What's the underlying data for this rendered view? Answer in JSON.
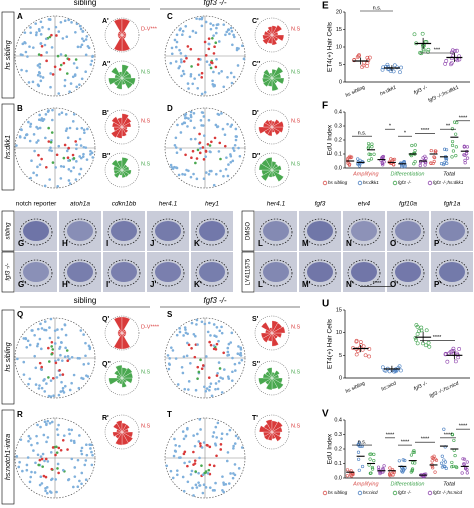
{
  "panels_top": {
    "column_headers": [
      "sibling",
      "fgf3 -/-"
    ],
    "row_labels": [
      "hs sibling",
      "hs:dkk1"
    ],
    "scatter_letters": [
      "A",
      "B",
      "C",
      "D"
    ],
    "rose_letters": [
      "A'",
      "A''",
      "B'",
      "B''",
      "C'",
      "C''",
      "D'",
      "D''"
    ],
    "rose_labels": [
      "D-V***",
      "N.S",
      "N.S",
      "N.S",
      "N.S",
      "N.S",
      "N.S",
      "N.S"
    ]
  },
  "in_situ": [
    {
      "headers": [
        "notch reporter",
        "atoh1a",
        "cdkn1bb",
        "her4.1",
        "hey1"
      ],
      "row_labels": [
        "sibling",
        "fgf3 -/-"
      ],
      "letters_top": [
        "G",
        "H",
        "I",
        "J",
        "K"
      ],
      "letters_bottom": [
        "G'",
        "H'",
        "I'",
        "J'",
        "K'"
      ]
    },
    {
      "headers": [
        "her4.1",
        "fgf3",
        "etv4",
        "fgf10a",
        "fgfr1a"
      ],
      "row_labels": [
        "DMSO",
        "LY411575"
      ],
      "letters_top": [
        "L",
        "M",
        "N",
        "O",
        "P"
      ],
      "letters_bottom": [
        "L'",
        "M'",
        "N'",
        "O'",
        "P'"
      ]
    }
  ],
  "panels_bottom": {
    "column_headers": [
      "sibling",
      "fgf3 -/-"
    ],
    "row_labels": [
      "hs sibling",
      "hs:notch1-intra"
    ],
    "scatter_letters": [
      "Q",
      "R",
      "S",
      "T"
    ],
    "rose_letters": [
      "Q'",
      "Q''",
      "R'",
      "S'",
      "S''",
      "T'"
    ],
    "rose_labels": [
      "D-V****",
      "N.S",
      "N.S",
      "N.S",
      "N.S",
      "N.S"
    ]
  },
  "charts": [
    {
      "letter": "E",
      "type": "dot",
      "ylabel": "ET4(+) Hair Cells",
      "categories": [
        "hs sibling",
        "hs:dkk1",
        "fgf3 -/-",
        "fgf3 -/-;hs:dkk1"
      ],
      "colors": [
        "#d9534f",
        "#4a7fc1",
        "#3fa34d",
        "#8e44ad"
      ],
      "values": [
        6,
        4,
        11,
        7
      ],
      "errors": [
        1,
        0.8,
        1.6,
        1.3
      ],
      "ylim": [
        0,
        20
      ],
      "yticks": [
        0,
        5,
        10,
        15,
        20
      ],
      "annotations": [
        "n.s.",
        "***"
      ]
    },
    {
      "letter": "F",
      "type": "grouped-dot",
      "ylabel": "EdU Index",
      "groups": [
        "Amplifying",
        "Differentiation",
        "Total"
      ],
      "group_colors": [
        "#d9534f",
        "#3fa34d",
        "#000000"
      ],
      "series": [
        {
          "name": "hs sibling",
          "color": "#d9534f",
          "values": [
            0.05,
            0.04,
            0.1
          ]
        },
        {
          "name": "hs:dkk1",
          "color": "#4a7fc1",
          "values": [
            0.04,
            0.03,
            0.08
          ]
        },
        {
          "name": "fgf3 -/-",
          "color": "#3fa34d",
          "values": [
            0.13,
            0.1,
            0.22
          ]
        },
        {
          "name": "fgf3 -/-;hs:dkk1",
          "color": "#8e44ad",
          "values": [
            0.06,
            0.05,
            0.12
          ]
        }
      ],
      "ylim": [
        0,
        0.4
      ],
      "yticks": [
        {
          "value": 0,
          "label": "0.0"
        },
        {
          "value": 0.1,
          "label": "0.1"
        },
        {
          "value": 0.2,
          "label": "0.2"
        },
        {
          "value": 0.3,
          "label": "0.3"
        },
        {
          "value": 0.4,
          "label": "0.4"
        }
      ],
      "annotations": [
        "n.s.",
        "*",
        "*",
        "****",
        "**",
        "****"
      ]
    },
    {
      "letter": "U",
      "type": "dot",
      "ylabel": "ET4(+) Hair Cells",
      "categories": [
        "hs sibling",
        "hs:nicd",
        "fgf3 -/-",
        "fgf3 -/-;hs:nicd"
      ],
      "colors": [
        "#d9534f",
        "#4a7fc1",
        "#3fa34d",
        "#8e44ad"
      ],
      "values": [
        6.5,
        2,
        9,
        5
      ],
      "errors": [
        0.8,
        0.7,
        1.2,
        0.9
      ],
      "ylim": [
        0,
        15
      ],
      "yticks": [
        0,
        5,
        10,
        15
      ],
      "annotations": [
        "****",
        "****"
      ]
    },
    {
      "letter": "V",
      "type": "grouped-dot",
      "ylabel": "EdU Index",
      "groups": [
        "Amplifying",
        "Differentiation",
        "Total"
      ],
      "group_colors": [
        "#d9534f",
        "#3fa34d",
        "#000000"
      ],
      "series": [
        {
          "name": "hs sibling",
          "color": "#d9534f",
          "values": [
            0.04,
            0.05,
            0.09
          ]
        },
        {
          "name": "hs:nicd",
          "color": "#4a7fc1",
          "values": [
            0.15,
            0.08,
            0.22
          ]
        },
        {
          "name": "fgf3 -/-",
          "color": "#3fa34d",
          "values": [
            0.1,
            0.12,
            0.2
          ]
        },
        {
          "name": "fgf3 -/-;hs:nicd",
          "color": "#8e44ad",
          "values": [
            0.05,
            0.02,
            0.08
          ]
        }
      ],
      "ylim": [
        0,
        0.4
      ],
      "yticks": [
        {
          "value": 0,
          "label": "0.0"
        },
        {
          "value": 0.1,
          "label": "0.1"
        },
        {
          "value": 0.2,
          "label": "0.2"
        },
        {
          "value": 0.3,
          "label": "0.3"
        },
        {
          "value": 0.4,
          "label": "0.4"
        }
      ],
      "annotations": [
        "n.s.",
        "****",
        "****",
        "****",
        "****",
        "****"
      ]
    }
  ]
}
